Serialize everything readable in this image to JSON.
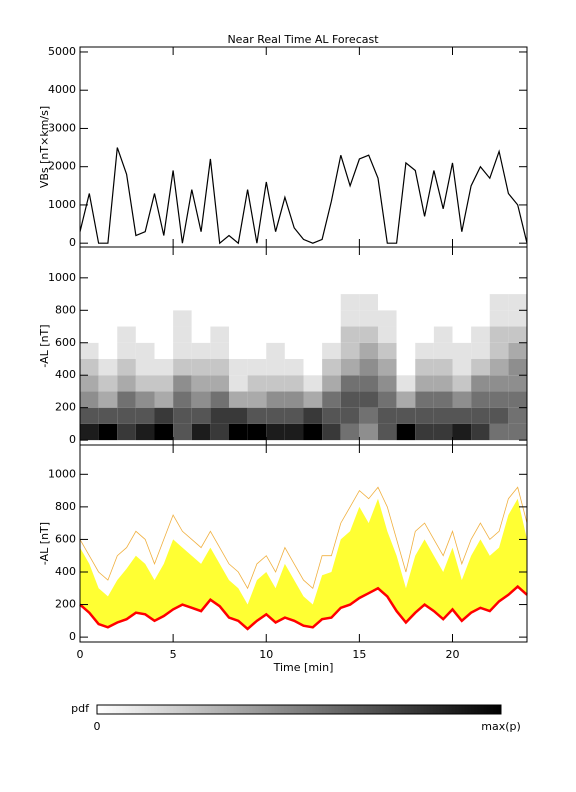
{
  "chart_data": [
    {
      "type": "line",
      "title": "Near Real Time AL Forecast",
      "ylabel": "VBs [nT×km/s]",
      "color": "#000000",
      "x": [
        0,
        0.5,
        1,
        1.5,
        2,
        2.5,
        3,
        3.5,
        4,
        4.5,
        5,
        5.5,
        6,
        6.5,
        7,
        7.5,
        8,
        8.5,
        9,
        9.5,
        10,
        10.5,
        11,
        11.5,
        12,
        12.5,
        13,
        13.5,
        14,
        14.5,
        15,
        15.5,
        16,
        16.5,
        17,
        17.5,
        18,
        18.5,
        19,
        19.5,
        20,
        20.5,
        21,
        21.5,
        22,
        22.5,
        23,
        23.5,
        24
      ],
      "values": [
        300,
        1300,
        0,
        0,
        2500,
        1800,
        200,
        300,
        1300,
        200,
        1900,
        0,
        1400,
        300,
        2200,
        0,
        200,
        0,
        1400,
        0,
        1600,
        300,
        1200,
        400,
        100,
        0,
        100,
        1100,
        2300,
        1500,
        2200,
        2300,
        1700,
        0,
        0,
        2100,
        1900,
        700,
        1900,
        900,
        2100,
        300,
        1500,
        2000,
        1700,
        2400,
        1300,
        1000,
        0
      ],
      "xlim": [
        0,
        24
      ],
      "xticks": [
        0,
        5,
        10,
        15,
        20
      ],
      "ylim": [
        -100,
        5130
      ],
      "yticks": [
        0,
        1000,
        2000,
        3000,
        4000,
        5000
      ]
    },
    {
      "type": "heatmap",
      "ylabel": "-AL [nT]",
      "time_bins": [
        0,
        1,
        2,
        3,
        4,
        5,
        6,
        7,
        8,
        9,
        10,
        11,
        12,
        13,
        14,
        15,
        16,
        17,
        18,
        19,
        20,
        21,
        22,
        23,
        24
      ],
      "al_bins": [
        0,
        100,
        200,
        300,
        400,
        500,
        600,
        700,
        800,
        900,
        1000
      ],
      "values": [
        [
          8,
          6,
          4,
          3,
          2,
          1,
          0,
          0,
          0,
          0
        ],
        [
          9,
          6,
          3,
          2,
          1,
          0,
          0,
          0,
          0,
          0
        ],
        [
          7,
          6,
          5,
          3,
          2,
          1,
          1,
          0,
          0,
          0
        ],
        [
          8,
          6,
          4,
          2,
          1,
          1,
          0,
          0,
          0,
          0
        ],
        [
          9,
          7,
          3,
          2,
          1,
          0,
          0,
          0,
          0,
          0
        ],
        [
          6,
          6,
          5,
          4,
          2,
          1,
          1,
          1,
          0,
          0
        ],
        [
          8,
          6,
          4,
          3,
          2,
          1,
          0,
          0,
          0,
          0
        ],
        [
          7,
          7,
          5,
          3,
          2,
          1,
          1,
          0,
          0,
          0
        ],
        [
          9,
          7,
          3,
          1,
          1,
          0,
          0,
          0,
          0,
          0
        ],
        [
          9,
          6,
          3,
          2,
          1,
          0,
          0,
          0,
          0,
          0
        ],
        [
          8,
          6,
          4,
          2,
          1,
          1,
          0,
          0,
          0,
          0
        ],
        [
          8,
          6,
          4,
          2,
          1,
          0,
          0,
          0,
          0,
          0
        ],
        [
          9,
          7,
          3,
          1,
          0,
          0,
          0,
          0,
          0,
          0
        ],
        [
          7,
          6,
          5,
          3,
          2,
          1,
          0,
          0,
          0,
          0
        ],
        [
          5,
          6,
          6,
          5,
          3,
          2,
          2,
          1,
          1,
          0
        ],
        [
          4,
          5,
          6,
          5,
          4,
          3,
          2,
          1,
          1,
          0
        ],
        [
          6,
          6,
          5,
          4,
          3,
          2,
          1,
          1,
          0,
          0
        ],
        [
          9,
          6,
          3,
          1,
          0,
          0,
          0,
          0,
          0,
          0
        ],
        [
          7,
          6,
          5,
          3,
          2,
          1,
          0,
          0,
          0,
          0
        ],
        [
          7,
          6,
          5,
          3,
          2,
          1,
          1,
          0,
          0,
          0
        ],
        [
          8,
          6,
          4,
          2,
          1,
          1,
          0,
          0,
          0,
          0
        ],
        [
          7,
          6,
          5,
          4,
          2,
          1,
          1,
          0,
          0,
          0
        ],
        [
          5,
          6,
          5,
          4,
          3,
          2,
          2,
          1,
          1,
          0
        ],
        [
          5,
          5,
          5,
          4,
          4,
          3,
          2,
          1,
          1,
          0
        ]
      ],
      "vmax": 9,
      "xlim": [
        0,
        24
      ],
      "xticks": [
        0,
        5,
        10,
        15,
        20
      ],
      "ylim": [
        -30,
        1190
      ],
      "yticks": [
        0,
        200,
        400,
        600,
        800,
        1000
      ]
    },
    {
      "type": "band",
      "ylabel": "-AL [nT]",
      "xlabel": "Time [min]",
      "x": [
        0,
        0.5,
        1,
        1.5,
        2,
        2.5,
        3,
        3.5,
        4,
        4.5,
        5,
        5.5,
        6,
        6.5,
        7,
        7.5,
        8,
        8.5,
        9,
        9.5,
        10,
        10.5,
        11,
        11.5,
        12,
        12.5,
        13,
        13.5,
        14,
        14.5,
        15,
        15.5,
        16,
        16.5,
        17,
        17.5,
        18,
        18.5,
        19,
        19.5,
        20,
        20.5,
        21,
        21.5,
        22,
        22.5,
        23,
        23.5,
        24
      ],
      "median": {
        "color": "#ff0000",
        "values": [
          200,
          150,
          80,
          60,
          90,
          110,
          150,
          140,
          100,
          130,
          170,
          200,
          180,
          160,
          230,
          190,
          120,
          100,
          50,
          100,
          140,
          90,
          120,
          100,
          70,
          60,
          110,
          120,
          180,
          200,
          240,
          270,
          300,
          250,
          160,
          90,
          150,
          200,
          160,
          110,
          170,
          100,
          150,
          180,
          160,
          220,
          260,
          310,
          260
        ]
      },
      "upper": {
        "color": "#ffff33",
        "values": [
          550,
          450,
          300,
          250,
          350,
          420,
          500,
          450,
          350,
          450,
          600,
          550,
          500,
          450,
          550,
          450,
          350,
          300,
          200,
          350,
          400,
          300,
          450,
          350,
          250,
          200,
          380,
          400,
          600,
          650,
          800,
          700,
          850,
          650,
          500,
          300,
          500,
          600,
          500,
          400,
          550,
          350,
          500,
          600,
          500,
          550,
          750,
          850,
          600
        ]
      },
      "outer": {
        "color": "#f0b040",
        "values": [
          600,
          500,
          400,
          350,
          500,
          550,
          650,
          600,
          450,
          600,
          750,
          650,
          600,
          550,
          650,
          550,
          450,
          400,
          300,
          450,
          500,
          400,
          550,
          450,
          350,
          300,
          500,
          500,
          700,
          800,
          900,
          850,
          920,
          800,
          600,
          400,
          650,
          700,
          600,
          500,
          650,
          450,
          600,
          700,
          600,
          650,
          850,
          920,
          700
        ]
      },
      "xlim": [
        0,
        24
      ],
      "xticks": [
        0,
        5,
        10,
        15,
        20
      ],
      "ylim": [
        -30,
        1180
      ],
      "yticks": [
        0,
        200,
        400,
        600,
        800,
        1000
      ]
    }
  ],
  "colorbar": {
    "label": "pdf",
    "min_label": "0",
    "max_label": "max(p)"
  }
}
